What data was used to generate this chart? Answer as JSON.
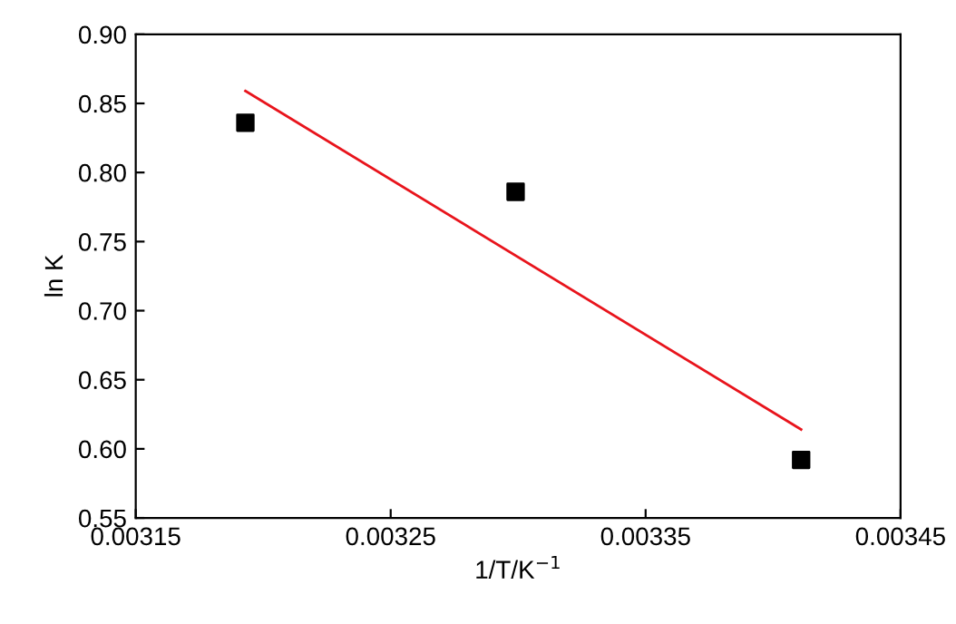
{
  "chart_data": {
    "type": "scatter",
    "xlabel": "1/T/K$^{−1}$",
    "ylabel": "ln K",
    "xlim": [
      0.00315,
      0.00345
    ],
    "xticks": [
      0.00315,
      0.00325,
      0.00335,
      0.00345
    ],
    "ylim": [
      0.55,
      0.9
    ],
    "yticks": [
      0.55,
      {
        "value": 0.6,
        "label": "0.60"
      },
      0.65,
      {
        "value": 0.7,
        "label": "0.70"
      },
      0.75,
      {
        "value": 0.8,
        "label": "0.80"
      },
      0.85,
      {
        "value": 0.9,
        "label": "0.90"
      }
    ],
    "grid": false,
    "legend": false,
    "series": [
      {
        "color": "#000000",
        "marker": "square",
        "x": [
          0.003193,
          0.003299,
          0.003411
        ],
        "values": [
          0.836,
          0.786,
          0.592
        ]
      },
      {
        "type": "line",
        "color": "#e8141c",
        "marker": "none",
        "line_style": "solid",
        "x": [
          0.003193,
          0.003411
        ],
        "values": [
          0.859,
          0.614
        ]
      }
    ]
  }
}
